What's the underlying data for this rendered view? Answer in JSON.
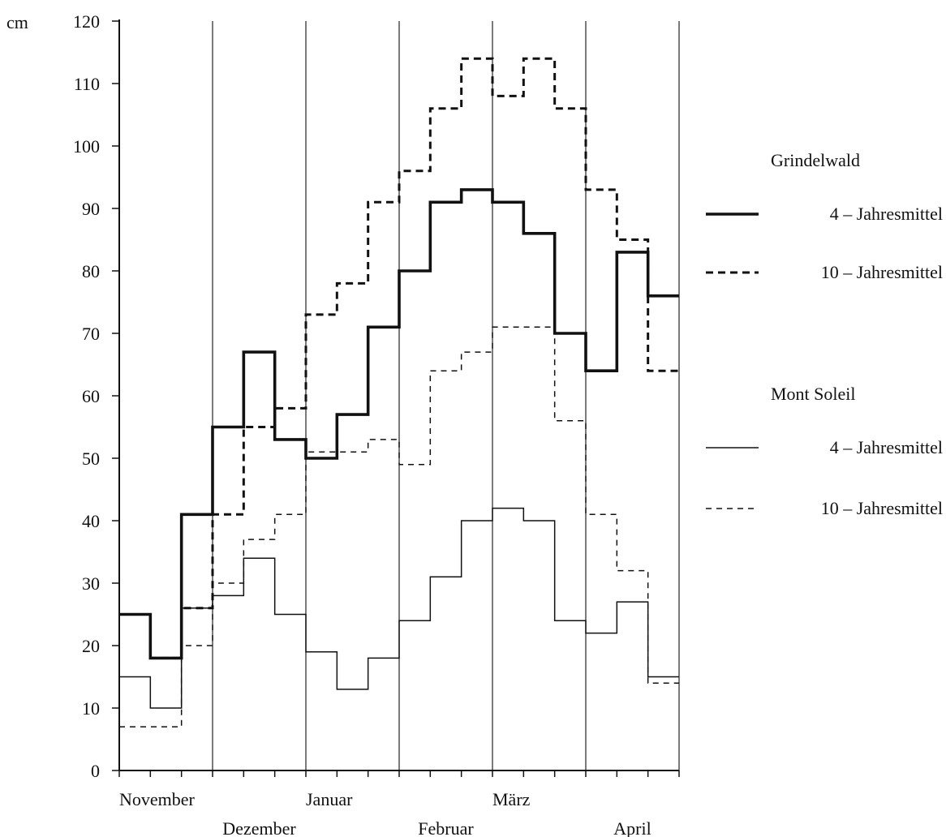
{
  "chart_data": {
    "type": "line",
    "step": true,
    "y_unit": "cm",
    "ylim": [
      0,
      120
    ],
    "y_ticks": [
      0,
      10,
      20,
      30,
      40,
      50,
      60,
      70,
      80,
      90,
      100,
      110,
      120
    ],
    "months": [
      "November",
      "Dezember",
      "Januar",
      "Februar",
      "März",
      "April"
    ],
    "periods_per_month": 3,
    "grid": "vertical month boundaries",
    "legend_position": "right",
    "legend_groups": [
      {
        "title": "Grindelwald",
        "series_indices": [
          0,
          1
        ]
      },
      {
        "title": "Mont Soleil",
        "series_indices": [
          2,
          3
        ]
      }
    ],
    "series": [
      {
        "name": "4 – Jahresmittel",
        "group": "Grindelwald",
        "values": [
          25,
          18,
          41,
          55,
          67,
          53,
          50,
          57,
          71,
          80,
          91,
          93,
          91,
          86,
          70,
          64,
          83,
          76
        ]
      },
      {
        "name": "10 – Jahresmittel",
        "group": "Grindelwald",
        "values": [
          25,
          18,
          26,
          41,
          55,
          58,
          73,
          78,
          91,
          96,
          106,
          114,
          108,
          114,
          106,
          93,
          85,
          64
        ]
      },
      {
        "name": "4 – Jahresmittel",
        "group": "Mont Soleil",
        "values": [
          15,
          10,
          26,
          28,
          34,
          25,
          19,
          13,
          18,
          24,
          31,
          40,
          42,
          40,
          24,
          22,
          27,
          15
        ]
      },
      {
        "name": "10 – Jahresmittel",
        "group": "Mont Soleil",
        "values": [
          7,
          7,
          20,
          30,
          37,
          41,
          51,
          51,
          53,
          49,
          64,
          67,
          71,
          71,
          56,
          41,
          32,
          14
        ]
      }
    ]
  }
}
